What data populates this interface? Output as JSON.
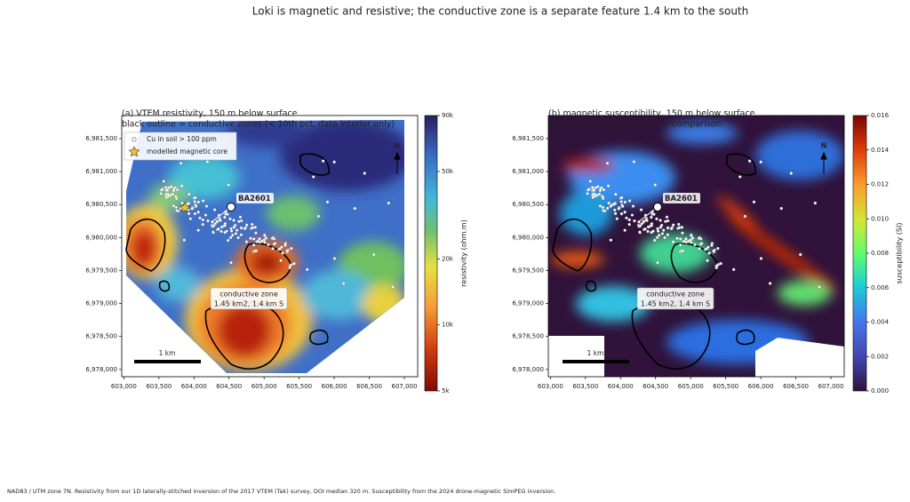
{
  "title": "Loki is magnetic and resistive; the conductive zone is a separate feature 1.4 km to the south",
  "panels": [
    {
      "title": [
        "(a)  VTEM resistivity, 150 m below surface",
        "black outline = conductive zones (< 10th pct, data interior only)"
      ],
      "xlim": [
        602970,
        607190
      ],
      "ylim": [
        6977890,
        6981850
      ],
      "xticks": [
        {
          "value": 603000,
          "label": "603,000"
        },
        {
          "value": 603500,
          "label": "603,500"
        },
        {
          "value": 604000,
          "label": "604,000"
        },
        {
          "value": 604500,
          "label": "604,500"
        },
        {
          "value": 605000,
          "label": "605,000"
        },
        {
          "value": 605500,
          "label": "605,500"
        },
        {
          "value": 606000,
          "label": "606,000"
        },
        {
          "value": 606500,
          "label": "606,500"
        },
        {
          "value": 607000,
          "label": "607,000"
        }
      ],
      "yticks": [
        {
          "value": 6978000,
          "label": "6,978,000"
        },
        {
          "value": 6978500,
          "label": "6,978,500"
        },
        {
          "value": 6979000,
          "label": "6,979,000"
        },
        {
          "value": 6979500,
          "label": "6,979,500"
        },
        {
          "value": 6980000,
          "label": "6,980,000"
        },
        {
          "value": 6980500,
          "label": "6,980,500"
        },
        {
          "value": 6981000,
          "label": "6,981,000"
        },
        {
          "value": 6981500,
          "label": "6,981,500"
        }
      ],
      "colorbar": {
        "label": "resistivity (ohm.m)",
        "scale": "log",
        "lim": [
          5000,
          90000
        ],
        "ticks": [
          {
            "value": 5000,
            "label": "5k"
          },
          {
            "value": 10000,
            "label": "10k"
          },
          {
            "value": 20000,
            "label": "20k"
          },
          {
            "value": 50000,
            "label": "50k"
          },
          {
            "value": 90000,
            "label": "90k"
          }
        ]
      },
      "legend": [
        "Cu in soil > 100 ppm",
        "modelled magnetic core"
      ],
      "well": "BA2601",
      "annotation": [
        "conductive zone",
        "1.45 km2, 1.4 km S"
      ],
      "north": "N",
      "scalebar": "1 km"
    },
    {
      "title": [
        "(b)  magnetic susceptibility, 150 m below surface",
        "same conductive outline, for comparison"
      ],
      "xlim": [
        602970,
        607190
      ],
      "ylim": [
        6977890,
        6981850
      ],
      "xticks": [
        {
          "value": 603000,
          "label": "603,000"
        },
        {
          "value": 603500,
          "label": "603,500"
        },
        {
          "value": 604000,
          "label": "604,000"
        },
        {
          "value": 604500,
          "label": "604,500"
        },
        {
          "value": 605000,
          "label": "605,000"
        },
        {
          "value": 605500,
          "label": "605,500"
        },
        {
          "value": 606000,
          "label": "606,000"
        },
        {
          "value": 606500,
          "label": "606,500"
        },
        {
          "value": 607000,
          "label": "607,000"
        }
      ],
      "yticks": [
        {
          "value": 6978000,
          "label": "6,978,000"
        },
        {
          "value": 6978500,
          "label": "6,978,500"
        },
        {
          "value": 6979000,
          "label": "6,979,000"
        },
        {
          "value": 6979500,
          "label": "6,979,500"
        },
        {
          "value": 6980000,
          "label": "6,980,000"
        },
        {
          "value": 6980500,
          "label": "6,980,500"
        },
        {
          "value": 6981000,
          "label": "6,981,000"
        },
        {
          "value": 6981500,
          "label": "6,981,500"
        }
      ],
      "colorbar": {
        "label": "susceptibility (SI)",
        "scale": "linear",
        "lim": [
          0,
          0.016
        ],
        "ticks": [
          {
            "value": 0,
            "label": "0.000"
          },
          {
            "value": 0.002,
            "label": "0.002"
          },
          {
            "value": 0.004,
            "label": "0.004"
          },
          {
            "value": 0.006,
            "label": "0.006"
          },
          {
            "value": 0.008,
            "label": "0.008"
          },
          {
            "value": 0.01,
            "label": "0.010"
          },
          {
            "value": 0.012,
            "label": "0.012"
          },
          {
            "value": 0.014,
            "label": "0.014"
          },
          {
            "value": 0.016,
            "label": "0.016"
          }
        ]
      },
      "well": "BA2601",
      "annotation": [
        "conductive zone",
        "1.45 km2, 1.4 km S"
      ],
      "north": "N",
      "scalebar": "1 km"
    }
  ],
  "footer": "NAD83 / UTM zone 7N.   Resistivity from our 1D laterally-stitched inversion of the 2017 VTEM (Tak) survey, DOI median 320 m.   Susceptibility from the 2024 drone-magnetic SimPEG inversion."
}
